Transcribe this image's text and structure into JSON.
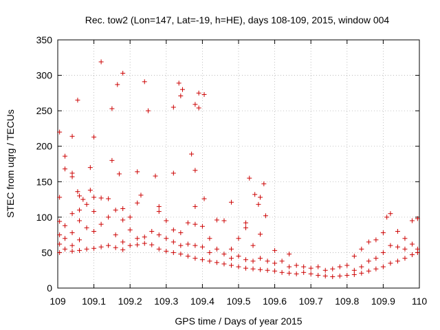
{
  "chart_data": {
    "type": "scatter",
    "title": "Rec. tow2 (Lon=147, Lat=-19, h=HE), days 108-109, 2015, window 004",
    "xlabel": "GPS time / Days of year 2015",
    "ylabel": "STEC from uqrg / TECUs",
    "xlim": [
      109,
      110
    ],
    "ylim": [
      0,
      350
    ],
    "xticks": [
      "109",
      "109.1",
      "109.2",
      "109.3",
      "109.4",
      "109.5",
      "109.6",
      "109.7",
      "109.8",
      "109.9",
      "110"
    ],
    "xtick_values": [
      109,
      109.1,
      109.2,
      109.3,
      109.4,
      109.5,
      109.6,
      109.7,
      109.8,
      109.9,
      110
    ],
    "yticks": [
      "0",
      "50",
      "100",
      "150",
      "200",
      "250",
      "300",
      "350"
    ],
    "ytick_values": [
      0,
      50,
      100,
      150,
      200,
      250,
      300,
      350
    ],
    "grid": true,
    "marker": "+",
    "marker_color": "#cc0000",
    "series": [
      {
        "points": [
          [
            109.005,
            220
          ],
          [
            109.005,
            128
          ],
          [
            109.02,
            186
          ],
          [
            109.02,
            168
          ],
          [
            109.04,
            214
          ],
          [
            109.04,
            162
          ],
          [
            109.04,
            157
          ],
          [
            109.055,
            265
          ],
          [
            109.055,
            136
          ],
          [
            109.06,
            130
          ],
          [
            109.07,
            125
          ],
          [
            109.09,
            170
          ],
          [
            109.09,
            138
          ],
          [
            109.1,
            213
          ],
          [
            109.12,
            319
          ],
          [
            109.15,
            253
          ],
          [
            109.15,
            180
          ],
          [
            109.165,
            287
          ],
          [
            109.18,
            303
          ],
          [
            109.17,
            161
          ],
          [
            109.24,
            291
          ],
          [
            109.25,
            250
          ],
          [
            109.22,
            164
          ],
          [
            109.23,
            131
          ],
          [
            109.27,
            158
          ],
          [
            109.32,
            255
          ],
          [
            109.335,
            289
          ],
          [
            109.34,
            271
          ],
          [
            109.345,
            280
          ],
          [
            109.32,
            162
          ],
          [
            109.37,
            189
          ],
          [
            109.38,
            259
          ],
          [
            109.39,
            254
          ],
          [
            109.39,
            275
          ],
          [
            109.405,
            273
          ],
          [
            109.38,
            166
          ],
          [
            109.405,
            126
          ],
          [
            109.48,
            121
          ],
          [
            109.53,
            155
          ],
          [
            109.545,
            132
          ],
          [
            109.56,
            128
          ],
          [
            109.57,
            147
          ],
          [
            109.555,
            118
          ],
          [
            109.005,
            94
          ],
          [
            109.005,
            75
          ],
          [
            109.005,
            62
          ],
          [
            109.005,
            50
          ],
          [
            109.02,
            88
          ],
          [
            109.02,
            70
          ],
          [
            109.02,
            55
          ],
          [
            109.04,
            105
          ],
          [
            109.04,
            78
          ],
          [
            109.04,
            60
          ],
          [
            109.04,
            52
          ],
          [
            109.06,
            110
          ],
          [
            109.06,
            95
          ],
          [
            109.06,
            68
          ],
          [
            109.06,
            53
          ],
          [
            109.08,
            118
          ],
          [
            109.08,
            85
          ],
          [
            109.08,
            55
          ],
          [
            109.1,
            128
          ],
          [
            109.1,
            108
          ],
          [
            109.1,
            80
          ],
          [
            109.1,
            56
          ],
          [
            109.12,
            127
          ],
          [
            109.12,
            90
          ],
          [
            109.12,
            58
          ],
          [
            109.14,
            126
          ],
          [
            109.14,
            100
          ],
          [
            109.14,
            60
          ],
          [
            109.16,
            110
          ],
          [
            109.16,
            75
          ],
          [
            109.16,
            57
          ],
          [
            109.18,
            112
          ],
          [
            109.18,
            96
          ],
          [
            109.18,
            65
          ],
          [
            109.18,
            54
          ],
          [
            109.2,
            100
          ],
          [
            109.2,
            82
          ],
          [
            109.2,
            60
          ],
          [
            109.22,
            120
          ],
          [
            109.22,
            70
          ],
          [
            109.22,
            61
          ],
          [
            109.24,
            72
          ],
          [
            109.24,
            63
          ],
          [
            109.26,
            80
          ],
          [
            109.26,
            61
          ],
          [
            109.28,
            115
          ],
          [
            109.28,
            108
          ],
          [
            109.28,
            75
          ],
          [
            109.28,
            55
          ],
          [
            109.3,
            95
          ],
          [
            109.3,
            70
          ],
          [
            109.3,
            52
          ],
          [
            109.32,
            82
          ],
          [
            109.32,
            65
          ],
          [
            109.32,
            50
          ],
          [
            109.34,
            78
          ],
          [
            109.34,
            60
          ],
          [
            109.34,
            48
          ],
          [
            109.36,
            92
          ],
          [
            109.36,
            62
          ],
          [
            109.36,
            45
          ],
          [
            109.38,
            115
          ],
          [
            109.38,
            90
          ],
          [
            109.38,
            60
          ],
          [
            109.38,
            42
          ],
          [
            109.4,
            87
          ],
          [
            109.4,
            58
          ],
          [
            109.4,
            40
          ],
          [
            109.42,
            70
          ],
          [
            109.42,
            50
          ],
          [
            109.42,
            38
          ],
          [
            109.44,
            96
          ],
          [
            109.44,
            55
          ],
          [
            109.44,
            36
          ],
          [
            109.46,
            95
          ],
          [
            109.46,
            48
          ],
          [
            109.46,
            34
          ],
          [
            109.48,
            55
          ],
          [
            109.48,
            42
          ],
          [
            109.48,
            32
          ],
          [
            109.5,
            70
          ],
          [
            109.5,
            45
          ],
          [
            109.5,
            30
          ],
          [
            109.52,
            92
          ],
          [
            109.52,
            85
          ],
          [
            109.52,
            40
          ],
          [
            109.52,
            28
          ],
          [
            109.54,
            60
          ],
          [
            109.54,
            38
          ],
          [
            109.54,
            27
          ],
          [
            109.56,
            76
          ],
          [
            109.56,
            42
          ],
          [
            109.56,
            26
          ],
          [
            109.575,
            102
          ],
          [
            109.58,
            38
          ],
          [
            109.58,
            25
          ],
          [
            109.6,
            53
          ],
          [
            109.6,
            35
          ],
          [
            109.6,
            24
          ],
          [
            109.62,
            38
          ],
          [
            109.62,
            22
          ],
          [
            109.64,
            48
          ],
          [
            109.64,
            30
          ],
          [
            109.64,
            21
          ],
          [
            109.66,
            32
          ],
          [
            109.66,
            20
          ],
          [
            109.68,
            30
          ],
          [
            109.68,
            22
          ],
          [
            109.7,
            28
          ],
          [
            109.7,
            20
          ],
          [
            109.72,
            30
          ],
          [
            109.72,
            18
          ],
          [
            109.74,
            25
          ],
          [
            109.74,
            17
          ],
          [
            109.76,
            27
          ],
          [
            109.76,
            16
          ],
          [
            109.78,
            30
          ],
          [
            109.78,
            17
          ],
          [
            109.8,
            32
          ],
          [
            109.8,
            18
          ],
          [
            109.82,
            45
          ],
          [
            109.82,
            25
          ],
          [
            109.82,
            19
          ],
          [
            109.84,
            55
          ],
          [
            109.84,
            30
          ],
          [
            109.84,
            21
          ],
          [
            109.86,
            65
          ],
          [
            109.86,
            38
          ],
          [
            109.86,
            24
          ],
          [
            109.88,
            68
          ],
          [
            109.88,
            42
          ],
          [
            109.88,
            27
          ],
          [
            109.9,
            78
          ],
          [
            109.9,
            50
          ],
          [
            109.9,
            30
          ],
          [
            109.91,
            100
          ],
          [
            109.92,
            105
          ],
          [
            109.92,
            60
          ],
          [
            109.92,
            35
          ],
          [
            109.94,
            80
          ],
          [
            109.94,
            58
          ],
          [
            109.94,
            38
          ],
          [
            109.96,
            70
          ],
          [
            109.96,
            55
          ],
          [
            109.96,
            42
          ],
          [
            109.98,
            95
          ],
          [
            109.98,
            62
          ],
          [
            109.98,
            47
          ],
          [
            109.995,
            98
          ],
          [
            109.995,
            55
          ],
          [
            109.995,
            50
          ]
        ]
      }
    ]
  }
}
